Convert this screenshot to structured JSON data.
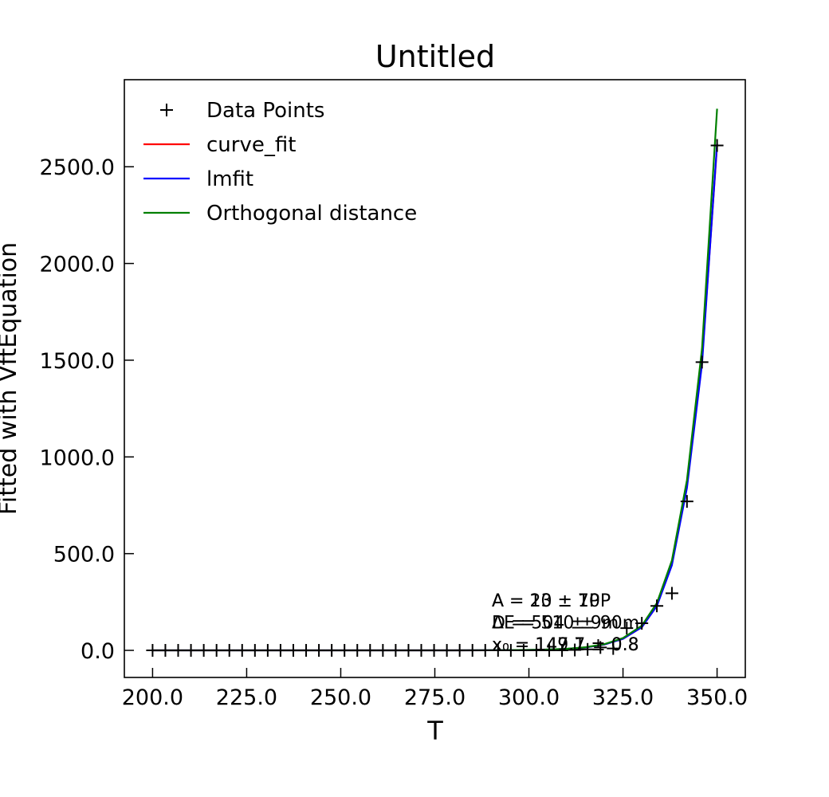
{
  "chart_data": {
    "type": "line",
    "title": "Untitled",
    "xlabel": "T",
    "ylabel": "Fitted with VftEquation",
    "xlim": [
      192.5,
      357.5
    ],
    "ylim": [
      -140,
      2950
    ],
    "xticks": [
      200,
      225,
      250,
      275,
      300,
      325,
      350
    ],
    "xtick_labels": [
      "200.0",
      "225.0",
      "250.0",
      "275.0",
      "300.0",
      "325.0",
      "350.0"
    ],
    "yticks": [
      0,
      500,
      1000,
      1500,
      2000,
      2500
    ],
    "ytick_labels": [
      "0.0",
      "500.0",
      "1000.0",
      "1500.0",
      "2000.0",
      "2500.0"
    ],
    "grid": false,
    "legend": {
      "position": "upper-left",
      "entries": [
        "Data Points",
        "curve_fit",
        "lmfit",
        "Orthogonal distance"
      ]
    },
    "points": {
      "name": "Data Points",
      "marker": "+",
      "color": "#000000",
      "x": [
        200,
        203.4,
        206.8,
        210.2,
        213.6,
        217,
        220.4,
        223.8,
        227.2,
        230.6,
        234,
        237.4,
        240.8,
        244.2,
        247.6,
        251,
        254.4,
        257.8,
        261.2,
        264.6,
        268,
        271.4,
        274.8,
        278.2,
        281.6,
        285,
        288.4,
        291.8,
        295.2,
        298.6,
        302,
        305.4,
        308.8,
        312.2,
        315.6,
        319,
        322.4,
        326,
        330,
        334,
        338,
        342,
        346,
        350
      ],
      "y": [
        0,
        0,
        0,
        0,
        0,
        0,
        0,
        0,
        0,
        0,
        0,
        0,
        0,
        0,
        0,
        0,
        0,
        0,
        0,
        0,
        0,
        0,
        0,
        0,
        0,
        0,
        0,
        0,
        0,
        0,
        0,
        0,
        0,
        2,
        5,
        15,
        10,
        115,
        140,
        230,
        295,
        770,
        1490,
        2610
      ]
    },
    "series": [
      {
        "name": "curve_fit",
        "color": "#ff0000",
        "x": [
          200,
          210,
          220,
          230,
          240,
          250,
          260,
          270,
          280,
          290,
          300,
          305,
          310,
          315,
          320,
          325,
          330,
          334,
          338,
          342,
          346,
          350
        ],
        "y": [
          0,
          0,
          0,
          0,
          0,
          0,
          0,
          0,
          0,
          0.5,
          2,
          4,
          8,
          15,
          30,
          60,
          120,
          230,
          450,
          850,
          1500,
          2610
        ]
      },
      {
        "name": "lmfit",
        "color": "#0000ff",
        "x": [
          200,
          210,
          220,
          230,
          240,
          250,
          260,
          270,
          280,
          290,
          300,
          305,
          310,
          315,
          320,
          325,
          330,
          334,
          338,
          342,
          346,
          350
        ],
        "y": [
          0,
          0,
          0,
          0,
          0,
          0,
          0,
          0,
          0,
          0.5,
          2,
          4,
          8,
          15,
          30,
          60,
          120,
          230,
          440,
          840,
          1480,
          2620
        ]
      },
      {
        "name": "Orthogonal distance",
        "color": "#008000",
        "x": [
          200,
          210,
          220,
          230,
          240,
          250,
          260,
          270,
          280,
          290,
          300,
          305,
          310,
          315,
          320,
          325,
          330,
          334,
          338,
          342,
          346,
          350
        ],
        "y": [
          0,
          0,
          0,
          0,
          0,
          0,
          0,
          0,
          0,
          0.5,
          2,
          4,
          8,
          16,
          32,
          64,
          128,
          245,
          465,
          880,
          1560,
          2800
        ]
      }
    ],
    "annotations": [
      {
        "lines": [
          "A = 13 ± 7P",
          "D = 504 ± 9m",
          "x₀ = 149.7 ± 0.8"
        ]
      },
      {
        "lines": [
          "A = 20 ± 10P",
          "ΔE = 510 ± 90m",
          "x₀ = 147.1 ± 0.8"
        ]
      }
    ]
  }
}
